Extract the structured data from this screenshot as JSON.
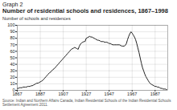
{
  "chart_data": {
    "type": "line",
    "subtitle": "Graph 2",
    "title": "Number of residential schools and residences, 1867–1998",
    "ylabel": "Number of schools and residences",
    "source": "Source: Indian and Northern Affairs Canada, Indian Residential Schools of the Indian Residential Schools\nSettlement Agreement 2011.",
    "color": "#222222",
    "grid": true,
    "xlim": [
      1867,
      1998
    ],
    "ylim": [
      0,
      100
    ],
    "xticks": [
      1867,
      1887,
      1907,
      1927,
      1947,
      1967,
      1987
    ],
    "yticks": [
      0,
      10,
      20,
      30,
      40,
      50,
      60,
      70,
      80,
      90,
      100
    ],
    "x": [
      1867,
      1868,
      1869,
      1870,
      1871,
      1872,
      1873,
      1874,
      1875,
      1876,
      1877,
      1878,
      1879,
      1880,
      1881,
      1882,
      1883,
      1884,
      1885,
      1886,
      1887,
      1888,
      1889,
      1890,
      1891,
      1892,
      1893,
      1894,
      1895,
      1896,
      1897,
      1898,
      1899,
      1900,
      1901,
      1902,
      1903,
      1904,
      1905,
      1906,
      1907,
      1908,
      1909,
      1910,
      1911,
      1912,
      1913,
      1914,
      1915,
      1916,
      1917,
      1918,
      1919,
      1920,
      1921,
      1922,
      1923,
      1924,
      1925,
      1926,
      1927,
      1928,
      1929,
      1930,
      1931,
      1932,
      1933,
      1934,
      1935,
      1936,
      1937,
      1938,
      1939,
      1940,
      1941,
      1942,
      1943,
      1944,
      1945,
      1946,
      1947,
      1948,
      1949,
      1950,
      1951,
      1952,
      1953,
      1954,
      1955,
      1956,
      1957,
      1958,
      1959,
      1960,
      1961,
      1962,
      1963,
      1964,
      1965,
      1966,
      1967,
      1968,
      1969,
      1970,
      1971,
      1972,
      1973,
      1974,
      1975,
      1976,
      1977,
      1978,
      1979,
      1980,
      1981,
      1982,
      1983,
      1984,
      1985,
      1986,
      1987,
      1988,
      1989,
      1990,
      1991,
      1992,
      1993,
      1994,
      1995,
      1996,
      1997,
      1998
    ],
    "values": [
      3,
      3,
      4,
      4,
      4,
      5,
      5,
      5,
      5,
      6,
      6,
      6,
      7,
      7,
      8,
      9,
      10,
      11,
      11,
      12,
      13,
      14,
      15,
      17,
      19,
      21,
      23,
      25,
      27,
      28,
      30,
      32,
      33,
      35,
      37,
      39,
      41,
      43,
      45,
      47,
      49,
      51,
      53,
      55,
      57,
      59,
      61,
      63,
      64,
      65,
      66,
      65,
      64,
      63,
      68,
      71,
      73,
      74,
      75,
      75,
      80,
      81,
      82,
      83,
      82,
      82,
      81,
      80,
      79,
      78,
      77,
      77,
      76,
      75,
      75,
      75,
      74,
      74,
      74,
      73,
      72,
      72,
      71,
      70,
      70,
      70,
      70,
      70,
      70,
      70,
      69,
      68,
      68,
      68,
      69,
      72,
      78,
      83,
      87,
      90,
      88,
      85,
      82,
      78,
      72,
      65,
      58,
      50,
      42,
      35,
      30,
      25,
      21,
      18,
      15,
      12,
      10,
      9,
      8,
      7,
      6,
      6,
      5,
      5,
      4,
      3,
      3,
      2,
      2,
      2,
      1,
      0
    ]
  }
}
